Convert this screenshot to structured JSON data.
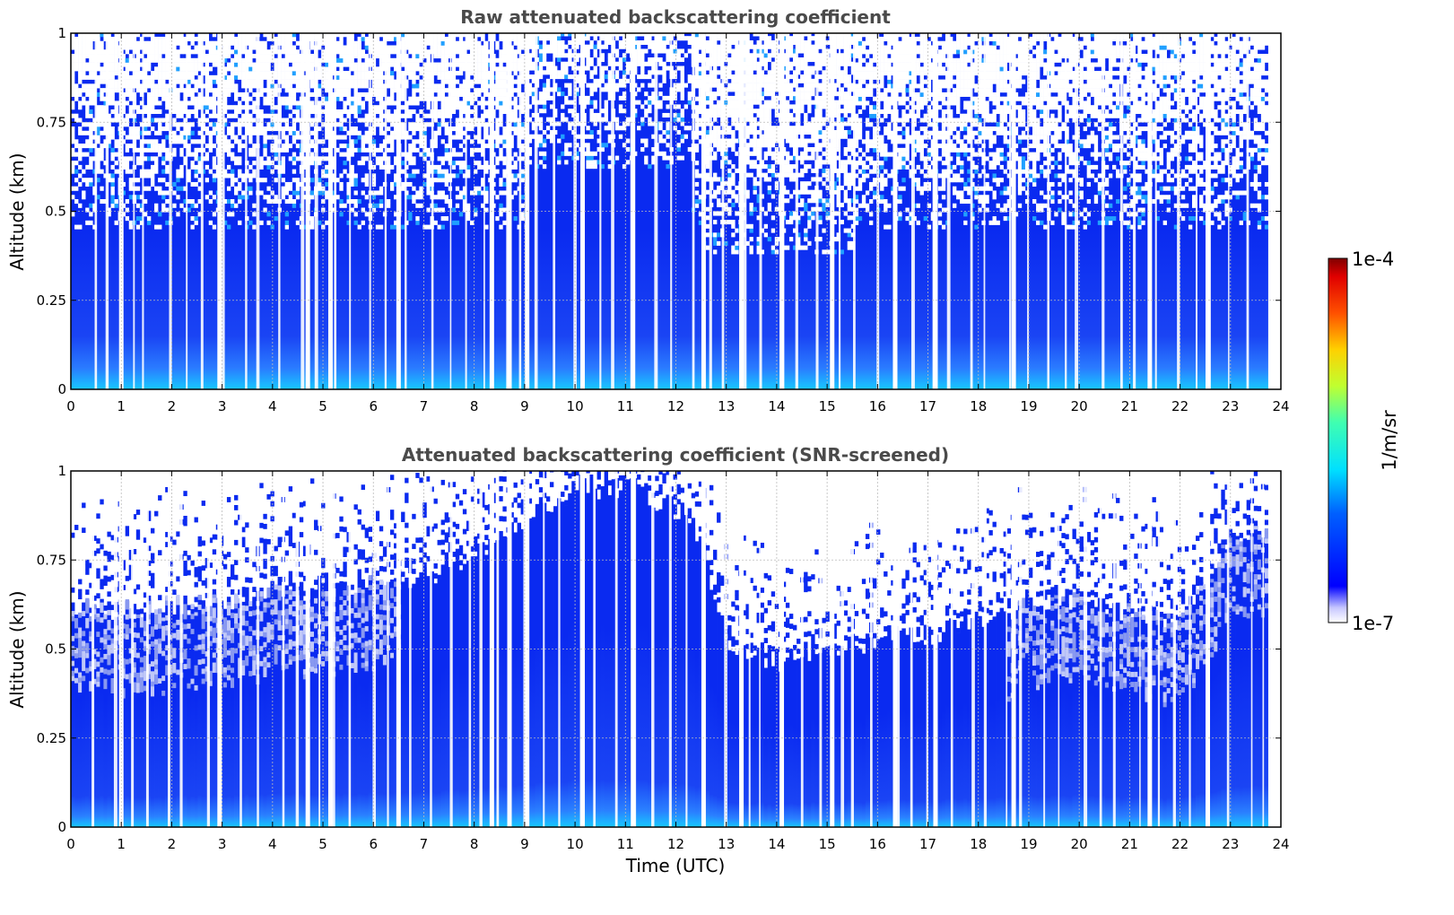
{
  "chart_data": [
    {
      "type": "heatmap",
      "title": "Raw attenuated backscattering coefficient",
      "ylabel": "Altitude (km)",
      "xlim": [
        0,
        24
      ],
      "ylim": [
        0,
        1
      ],
      "xticks": [
        "0",
        "1",
        "2",
        "3",
        "4",
        "5",
        "6",
        "7",
        "8",
        "9",
        "10",
        "11",
        "12",
        "13",
        "14",
        "15",
        "16",
        "17",
        "18",
        "19",
        "20",
        "21",
        "22",
        "23",
        "24"
      ],
      "yticks": [
        "0",
        "0.25",
        "0.5",
        "0.75",
        "1"
      ],
      "grid": true,
      "gaps_utc": [
        1.0,
        2.95,
        4.7,
        5.15,
        6.5,
        8.35,
        8.7,
        9.05,
        10.15,
        11.15,
        12.55,
        13.3,
        14.1,
        15.1,
        16.35,
        17.15,
        18.7,
        21.4,
        22.55
      ],
      "description_values": {
        "near_surface_max_km": 0.05,
        "dense_layer_top_km": 0.45
      }
    },
    {
      "type": "heatmap",
      "title": "Attenuated backscattering coefficient (SNR-screened)",
      "xlabel": "Time (UTC)",
      "ylabel": "Altitude (km)",
      "xlim": [
        0,
        24
      ],
      "ylim": [
        0,
        1
      ],
      "xticks": [
        "0",
        "1",
        "2",
        "3",
        "4",
        "5",
        "6",
        "7",
        "8",
        "9",
        "10",
        "11",
        "12",
        "13",
        "14",
        "15",
        "16",
        "17",
        "18",
        "19",
        "20",
        "21",
        "22",
        "23",
        "24"
      ],
      "yticks": [
        "0",
        "0.25",
        "0.5",
        "0.75",
        "1"
      ],
      "grid": true,
      "gaps_utc": [
        1.0,
        2.95,
        4.7,
        5.15,
        6.5,
        8.35,
        8.7,
        9.05,
        10.15,
        11.15,
        12.55,
        13.3,
        14.1,
        15.1,
        16.35,
        17.15,
        18.7,
        21.4,
        22.55
      ],
      "layer_top_km": {
        "x": [
          0,
          1,
          2,
          3,
          4,
          5,
          6,
          7,
          8,
          9,
          10,
          11,
          12,
          12.5,
          13,
          14,
          15,
          16,
          17,
          18,
          19,
          20,
          21,
          22,
          23,
          24
        ],
        "y": [
          0.62,
          0.61,
          0.62,
          0.63,
          0.66,
          0.66,
          0.68,
          0.7,
          0.77,
          0.86,
          0.95,
          0.95,
          0.88,
          0.78,
          0.52,
          0.46,
          0.5,
          0.52,
          0.54,
          0.58,
          0.62,
          0.64,
          0.6,
          0.58,
          0.82,
          0.85
        ]
      }
    }
  ],
  "colorbar": {
    "max_label": "1e-4",
    "min_label": "1e-7",
    "unit_label": "1/m/sr",
    "colormap": "jet"
  },
  "colors": {
    "dense_blue": "#0a2af0",
    "mid_blue": "#1a3cf5",
    "light_blue": "#2a7bff",
    "surface_cyan": "#18c8ff",
    "faint_blue": "#b8c0f8"
  }
}
